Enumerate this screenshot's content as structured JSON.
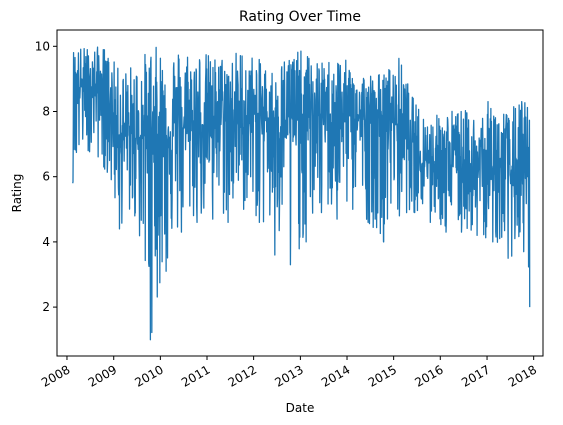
{
  "chart_data": {
    "type": "line",
    "title": "Rating Over Time",
    "xlabel": "Date",
    "ylabel": "Rating",
    "x_axis": "date",
    "xlim": [
      "2007-10-15",
      "2018-03-15"
    ],
    "ylim": [
      0.5,
      10.5
    ],
    "x_ticks": [
      "2008",
      "2009",
      "2010",
      "2011",
      "2012",
      "2013",
      "2014",
      "2015",
      "2016",
      "2017",
      "2018"
    ],
    "y_ticks": [
      2,
      4,
      6,
      8,
      10
    ],
    "grid": false,
    "legend": "none",
    "series": [
      {
        "color": "#1f77b4",
        "x": [
          "2008-02-15",
          "2008-06-15",
          "2008-10-15",
          "2009-02-15",
          "2009-06-15",
          "2009-10-15",
          "2010-02-15",
          "2010-06-15",
          "2010-10-15",
          "2011-02-15",
          "2011-06-15",
          "2011-10-15",
          "2012-02-15",
          "2012-06-15",
          "2012-10-15",
          "2013-02-15",
          "2013-06-15",
          "2013-10-15",
          "2014-02-15",
          "2014-06-15",
          "2014-10-15",
          "2015-02-15",
          "2015-06-15",
          "2015-10-15",
          "2016-02-15",
          "2016-06-15",
          "2016-10-15",
          "2017-02-15",
          "2017-06-15",
          "2017-10-15",
          "2017-12-01"
        ],
        "y_mean": [
          8.7,
          8.8,
          8.7,
          7.3,
          7.2,
          7.3,
          7.3,
          7.5,
          7.5,
          7.8,
          7.7,
          7.5,
          7.8,
          7.8,
          7.7,
          7.8,
          7.9,
          7.8,
          7.9,
          7.7,
          7.8,
          7.6,
          6.6,
          6.5,
          6.4,
          6.3,
          6.3,
          6.1,
          6.0,
          6.0,
          6.0
        ],
        "y_max": [
          10,
          10,
          10,
          9.3,
          9.5,
          10,
          10,
          10,
          10,
          9.7,
          9.8,
          10,
          9.6,
          9.3,
          10,
          9.8,
          9.5,
          9.8,
          9.4,
          9.2,
          9.2,
          9.7,
          8.3,
          7.8,
          8.1,
          8.1,
          7.9,
          8.5,
          8.0,
          8.5,
          8.2
        ],
        "y_min": [
          5.8,
          6.8,
          6.3,
          4.4,
          4.8,
          1.0,
          3.1,
          4.3,
          4.6,
          4.7,
          4.6,
          5.0,
          4.6,
          3.6,
          3.3,
          4.0,
          4.9,
          4.7,
          5.0,
          4.6,
          4.0,
          4.8,
          4.9,
          4.6,
          4.3,
          4.3,
          4.2,
          4.0,
          3.5,
          3.7,
          2.0
        ]
      }
    ]
  }
}
